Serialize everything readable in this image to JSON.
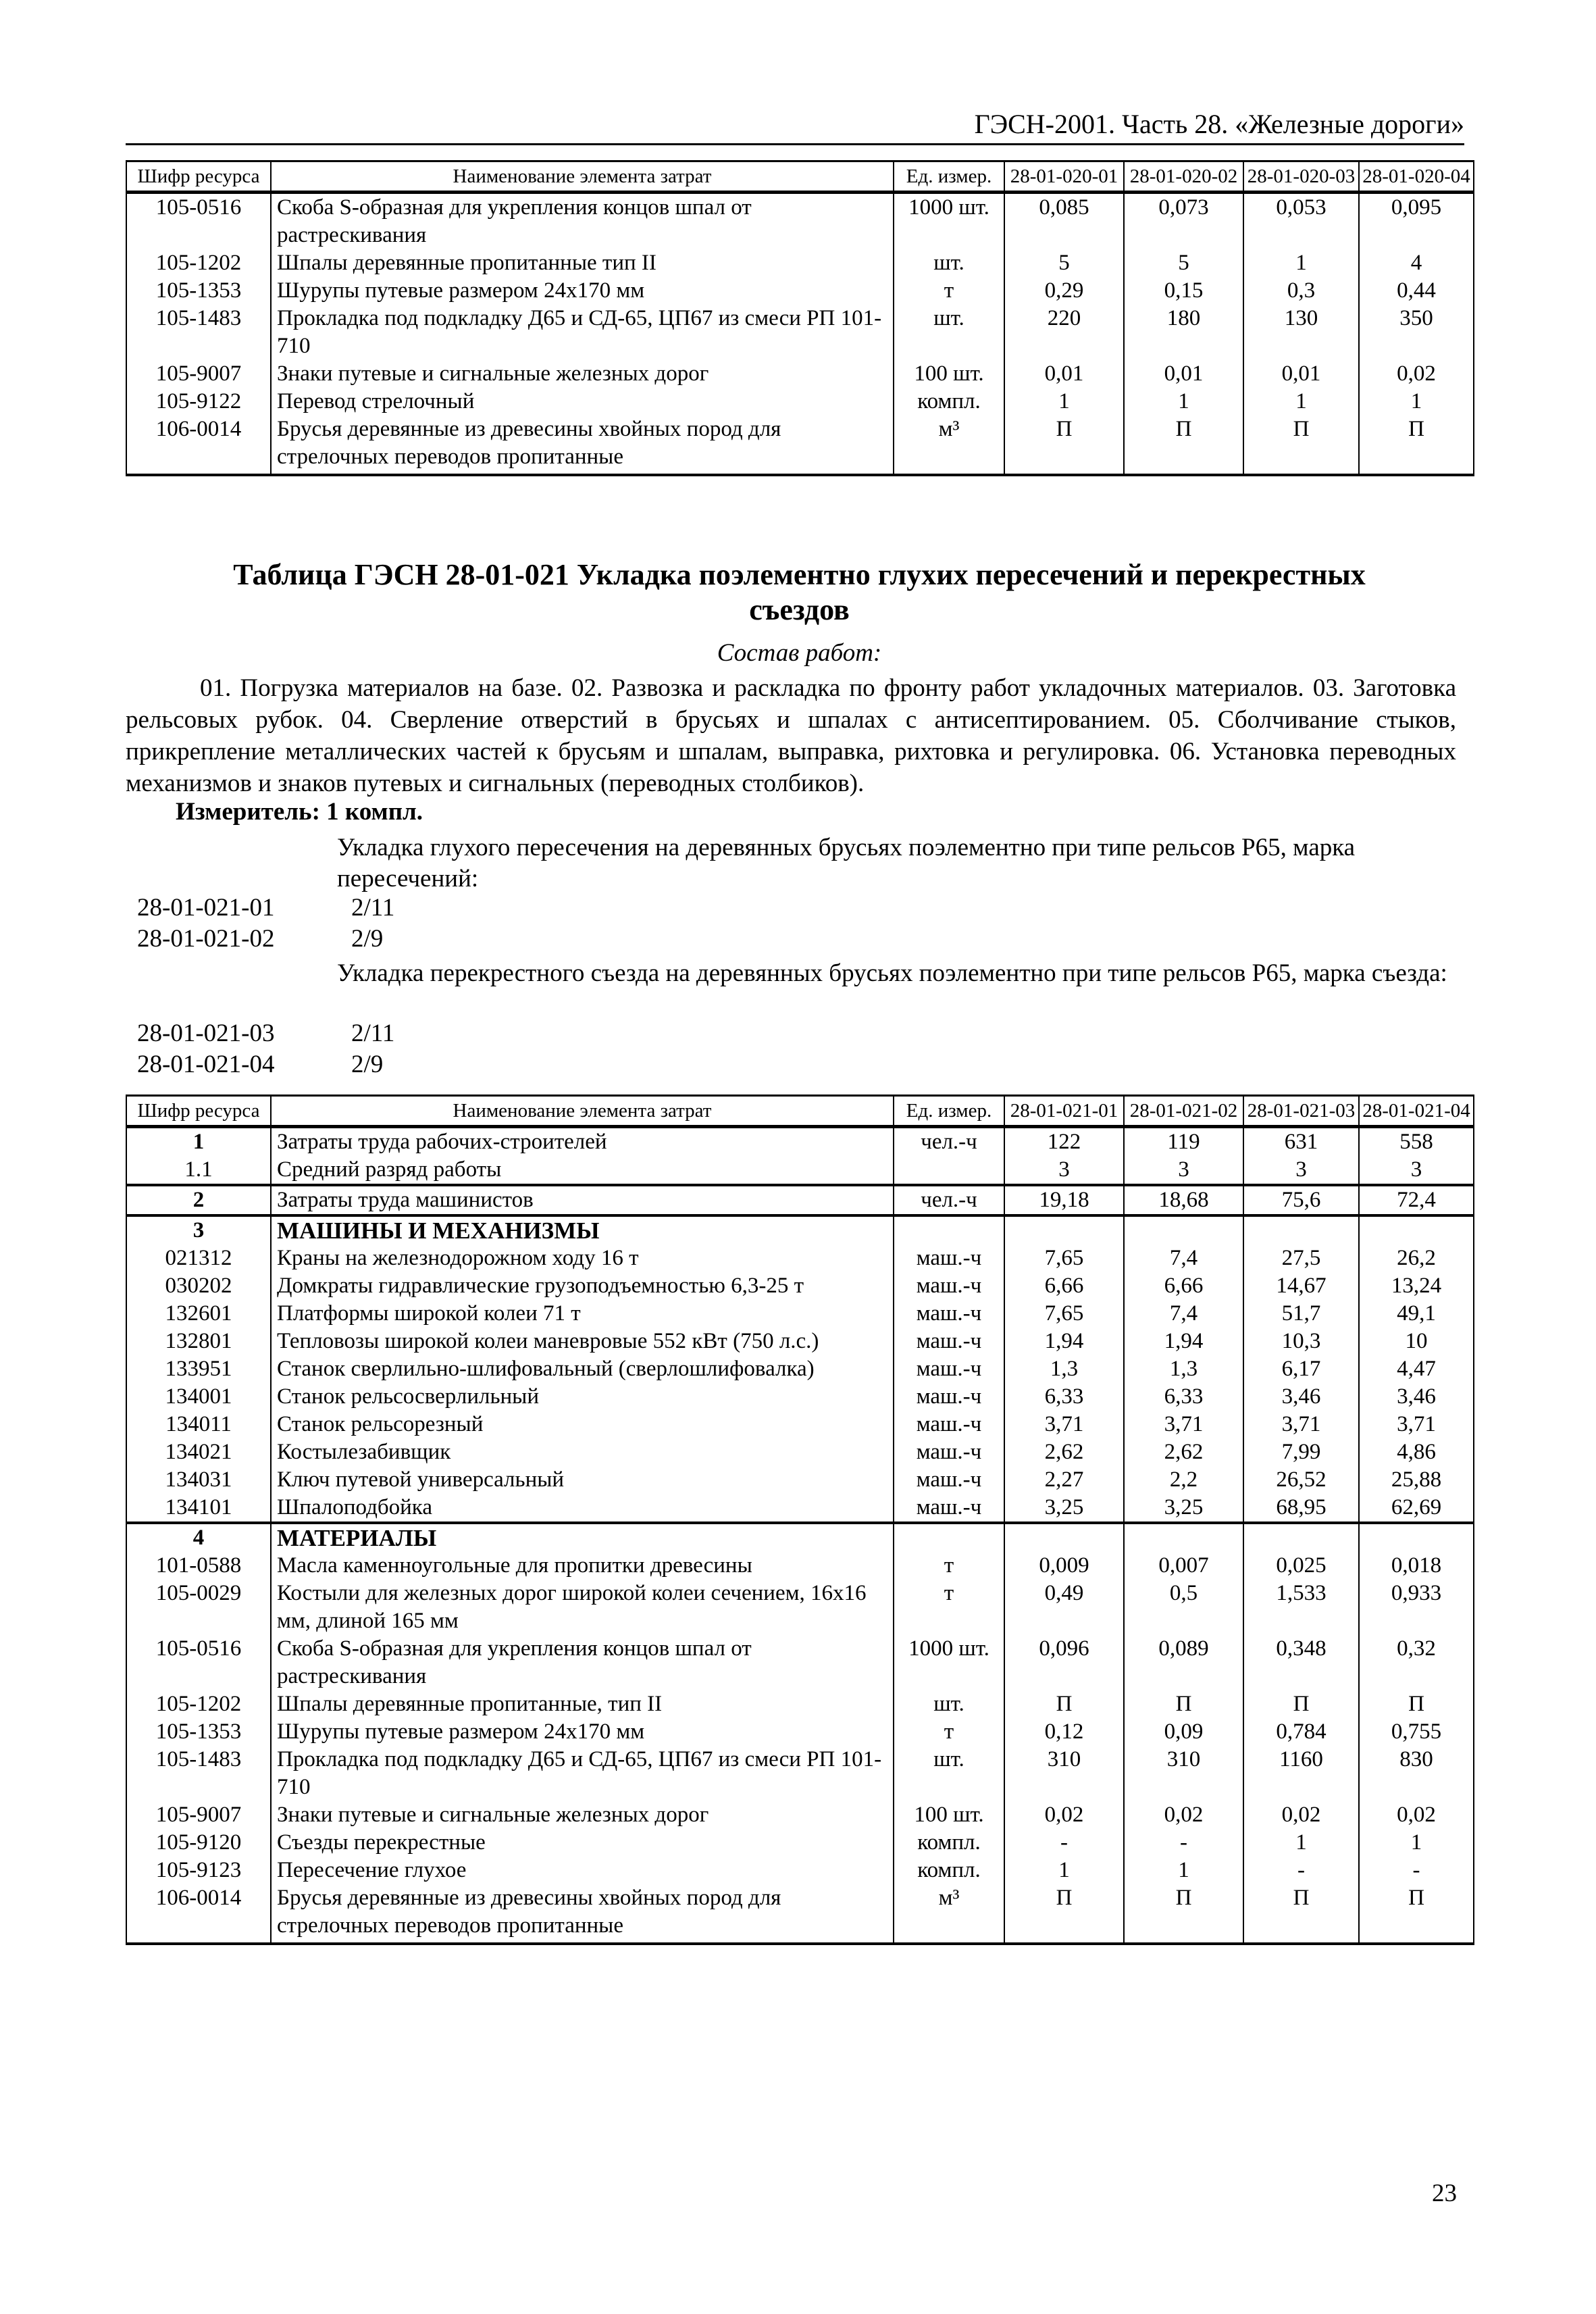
{
  "header": {
    "title": "ГЭСН-2001. Часть 28. «Железные дороги»"
  },
  "columns_1": [
    "Шифр ресурса",
    "Наименование элемента затрат",
    "Ед. измер.",
    "28-01-020-01",
    "28-01-020-02",
    "28-01-020-03",
    "28-01-020-04"
  ],
  "table_1": [
    {
      "code": "105-0516",
      "name": "Скоба S-образная для укрепления концов шпал от растрескивания",
      "unit": "1000 шт.",
      "values": [
        "0,085",
        "0,073",
        "0,053",
        "0,095"
      ]
    },
    {
      "code": "105-1202",
      "name": "Шпалы деревянные пропитанные  тип II",
      "unit": "шт.",
      "values": [
        "5",
        "5",
        "1",
        "4"
      ]
    },
    {
      "code": "105-1353",
      "name": "Шурупы путевые размером 24х170 мм",
      "unit": "т",
      "values": [
        "0,29",
        "0,15",
        "0,3",
        "0,44"
      ]
    },
    {
      "code": "105-1483",
      "name": "Прокладка под подкладку Д65 и СД-65, ЦП67 из смеси РП 101-710",
      "unit": "шт.",
      "values": [
        "220",
        "180",
        "130",
        "350"
      ]
    },
    {
      "code": "105-9007",
      "name": "Знаки путевые и сигнальные железных дорог",
      "unit": "100 шт.",
      "values": [
        "0,01",
        "0,01",
        "0,01",
        "0,02"
      ]
    },
    {
      "code": "105-9122",
      "name": "Перевод стрелочный",
      "unit": "компл.",
      "values": [
        "1",
        "1",
        "1",
        "1"
      ]
    },
    {
      "code": "106-0014",
      "name": "Брусья деревянные из древесины хвойных пород для стрелочных переводов пропитанные",
      "unit": "м³",
      "values": [
        "П",
        "П",
        "П",
        "П"
      ]
    }
  ],
  "section": {
    "title_line1": "Таблица ГЭСН 28-01-021 Укладка поэлементно глухих пересечений и перекрестных",
    "title_line2": "съездов",
    "sostav": "Состав работ:",
    "paragraph": "01. Погрузка материалов на базе. 02. Развозка и раскладка по фронту работ укладочных материалов. 03. Заготовка рельсовых рубок. 04. Сверление отверстий в брусьях и шпалах с антисептированием. 05. Сболчивание стыков, прикрепление металлических частей к брусьям и шпалам, выправка, рихтовка и регулировка. 06. Установка переводных механизмов и знаков путевых и сигнальных (переводных столбиков).",
    "izmeritel": "Измеритель: 1 компл.",
    "group1": "Укладка глухого пересечения на деревянных брусьях поэлементно при типе рельсов Р65, марка пересечений:",
    "items1": [
      {
        "code": "28-01-021-01",
        "mark": "2/11"
      },
      {
        "code": "28-01-021-02",
        "mark": "2/9"
      }
    ],
    "group2": "Укладка перекрестного съезда на деревянных брусьях поэлементно при типе рельсов Р65, марка съезда:",
    "items2": [
      {
        "code": "28-01-021-03",
        "mark": "2/11"
      },
      {
        "code": "28-01-021-04",
        "mark": "2/9"
      }
    ]
  },
  "columns_2": [
    "Шифр ресурса",
    "Наименование элемента затрат",
    "Ед. измер.",
    "28-01-021-01",
    "28-01-021-02",
    "28-01-021-03",
    "28-01-021-04"
  ],
  "table_2": [
    {
      "code": "1",
      "name": "Затраты труда рабочих-строителей",
      "unit": "чел.-ч",
      "values": [
        "122",
        "119",
        "631",
        "558"
      ],
      "bold_code": true
    },
    {
      "code": "1.1",
      "name": "Средний разряд работы",
      "unit": "",
      "values": [
        "3",
        "3",
        "3",
        "3"
      ]
    },
    {
      "code": "2",
      "name": "Затраты труда машинистов",
      "unit": "чел.-ч",
      "values": [
        "19,18",
        "18,68",
        "75,6",
        "72,4"
      ],
      "sep": true,
      "bold_code": true
    },
    {
      "code": "3",
      "name": "МАШИНЫ И МЕХАНИЗМЫ",
      "unit": "",
      "values": [
        "",
        "",
        "",
        ""
      ],
      "sep": true,
      "bold": true
    },
    {
      "code": "021312",
      "name": "Краны на железнодорожном ходу 16 т",
      "unit": "маш.-ч",
      "values": [
        "7,65",
        "7,4",
        "27,5",
        "26,2"
      ]
    },
    {
      "code": "030202",
      "name": "Домкраты гидравлические грузоподъемностью 6,3-25 т",
      "unit": "маш.-ч",
      "values": [
        "6,66",
        "6,66",
        "14,67",
        "13,24"
      ]
    },
    {
      "code": "132601",
      "name": "Платформы широкой колеи 71 т",
      "unit": "маш.-ч",
      "values": [
        "7,65",
        "7,4",
        "51,7",
        "49,1"
      ]
    },
    {
      "code": "132801",
      "name": "Тепловозы широкой колеи маневровые 552 кВт (750 л.с.)",
      "unit": "маш.-ч",
      "values": [
        "1,94",
        "1,94",
        "10,3",
        "10"
      ]
    },
    {
      "code": "133951",
      "name": "Станок сверлильно-шлифовальный (сверлошлифовалка)",
      "unit": "маш.-ч",
      "values": [
        "1,3",
        "1,3",
        "6,17",
        "4,47"
      ]
    },
    {
      "code": "134001",
      "name": "Станок рельсосверлильный",
      "unit": "маш.-ч",
      "values": [
        "6,33",
        "6,33",
        "3,46",
        "3,46"
      ]
    },
    {
      "code": "134011",
      "name": "Станок рельсорезный",
      "unit": "маш.-ч",
      "values": [
        "3,71",
        "3,71",
        "3,71",
        "3,71"
      ]
    },
    {
      "code": "134021",
      "name": "Костылезабивщик",
      "unit": "маш.-ч",
      "values": [
        "2,62",
        "2,62",
        "7,99",
        "4,86"
      ]
    },
    {
      "code": "134031",
      "name": "Ключ путевой универсальный",
      "unit": "маш.-ч",
      "values": [
        "2,27",
        "2,2",
        "26,52",
        "25,88"
      ]
    },
    {
      "code": "134101",
      "name": "Шпалоподбойка",
      "unit": "маш.-ч",
      "values": [
        "3,25",
        "3,25",
        "68,95",
        "62,69"
      ]
    },
    {
      "code": "4",
      "name": "МАТЕРИАЛЫ",
      "unit": "",
      "values": [
        "",
        "",
        "",
        ""
      ],
      "sep": true,
      "bold": true
    },
    {
      "code": "101-0588",
      "name": "Масла каменноугольные для пропитки древесины",
      "unit": "т",
      "values": [
        "0,009",
        "0,007",
        "0,025",
        "0,018"
      ]
    },
    {
      "code": "105-0029",
      "name": "Костыли для железных дорог широкой колеи сечением, 16х16 мм, длиной 165 мм",
      "unit": "т",
      "values": [
        "0,49",
        "0,5",
        "1,533",
        "0,933"
      ]
    },
    {
      "code": "105-0516",
      "name": "Скоба S-образная для укрепления концов шпал от растрескивания",
      "unit": "1000 шт.",
      "values": [
        "0,096",
        "0,089",
        "0,348",
        "0,32"
      ]
    },
    {
      "code": "105-1202",
      "name": "Шпалы деревянные пропитанные, тип II",
      "unit": "шт.",
      "values": [
        "П",
        "П",
        "П",
        "П"
      ]
    },
    {
      "code": "105-1353",
      "name": "Шурупы путевые размером 24х170 мм",
      "unit": "т",
      "values": [
        "0,12",
        "0,09",
        "0,784",
        "0,755"
      ]
    },
    {
      "code": "105-1483",
      "name": "Прокладка под подкладку Д65 и СД-65, ЦП67 из смеси РП 101-710",
      "unit": "шт.",
      "values": [
        "310",
        "310",
        "1160",
        "830"
      ]
    },
    {
      "code": "105-9007",
      "name": "Знаки путевые и сигнальные железных дорог",
      "unit": "100 шт.",
      "values": [
        "0,02",
        "0,02",
        "0,02",
        "0,02"
      ]
    },
    {
      "code": "105-9120",
      "name": "Съезды перекрестные",
      "unit": "компл.",
      "values": [
        "-",
        "-",
        "1",
        "1"
      ]
    },
    {
      "code": "105-9123",
      "name": "Пересечение глухое",
      "unit": "компл.",
      "values": [
        "1",
        "1",
        "-",
        "-"
      ]
    },
    {
      "code": "106-0014",
      "name": "Брусья деревянные из древесины хвойных пород для стрелочных переводов пропитанные",
      "unit": "м³",
      "values": [
        "П",
        "П",
        "П",
        "П"
      ]
    }
  ],
  "page_number": "23"
}
